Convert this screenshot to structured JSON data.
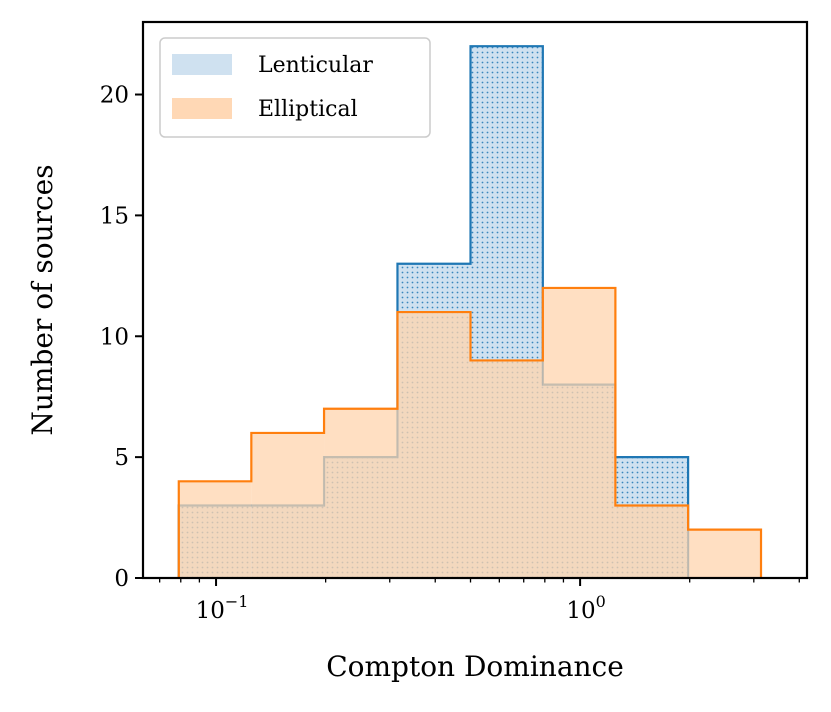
{
  "chart_data": {
    "type": "histogram",
    "xscale": "log",
    "xlabel": "Compton Dominance",
    "ylabel": "Number of sources",
    "xlim": [
      0.063,
      4.2
    ],
    "ylim": [
      0,
      23
    ],
    "yticks": [
      0,
      5,
      10,
      15,
      20
    ],
    "xticks": [
      {
        "value": 0.1,
        "base": "10",
        "exp": "−1"
      },
      {
        "value": 1,
        "base": "10",
        "exp": "0"
      }
    ],
    "bin_edges": [
      0.079,
      0.125,
      0.198,
      0.315,
      0.5,
      0.79,
      1.25,
      1.98,
      3.14
    ],
    "series": [
      {
        "name": "Lenticular",
        "color": "#1f77b4",
        "fill": "#cfe1f0",
        "hatched": true,
        "counts": [
          3,
          3,
          5,
          13,
          22,
          8,
          5,
          0
        ]
      },
      {
        "name": "Elliptical",
        "color": "#ff7f0e",
        "fill": "#ffd4ad",
        "hatched": false,
        "counts": [
          4,
          6,
          7,
          11,
          9,
          12,
          3,
          2
        ]
      }
    ],
    "legend": {
      "position": "top-left",
      "entries": [
        "Lenticular",
        "Elliptical"
      ]
    }
  }
}
